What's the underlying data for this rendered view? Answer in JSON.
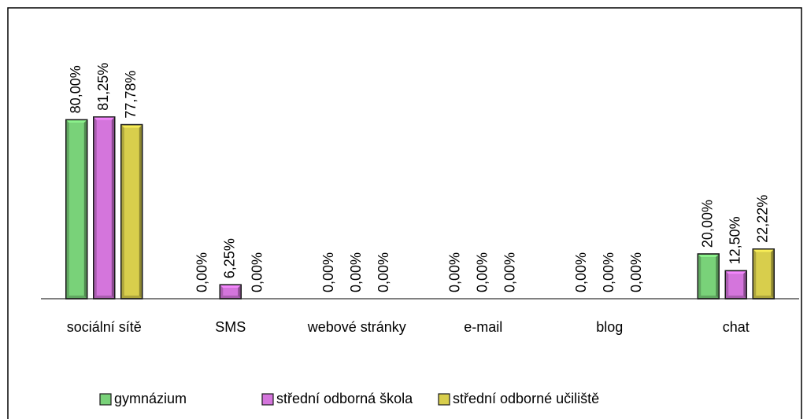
{
  "chart_data": {
    "type": "bar",
    "categories": [
      "sociální sítě",
      "SMS",
      "webové stránky",
      "e-mail",
      "blog",
      "chat"
    ],
    "series": [
      {
        "name": "gymnázium",
        "color": "#79d279",
        "values": [
          80,
          0,
          0,
          0,
          0,
          20
        ],
        "value_labels": [
          "80,00%",
          "0,00%",
          "0,00%",
          "0,00%",
          "0,00%",
          "20,00%"
        ]
      },
      {
        "name": "střední odborná škola",
        "color": "#d475dc",
        "values": [
          81.25,
          6.25,
          0,
          0,
          0,
          12.5
        ],
        "value_labels": [
          "81,25%",
          "6,25%",
          "0,00%",
          "0,00%",
          "0,00%",
          "12,50%"
        ]
      },
      {
        "name": "střední odborné učiliště",
        "color": "#d8ce4c",
        "values": [
          77.78,
          0,
          0,
          0,
          0,
          22.22
        ],
        "value_labels": [
          "77,78%",
          "0,00%",
          "0,00%",
          "0,00%",
          "0,00%",
          "22,22%"
        ]
      }
    ],
    "ylim": [
      0,
      130
    ],
    "legend": "bottom"
  }
}
